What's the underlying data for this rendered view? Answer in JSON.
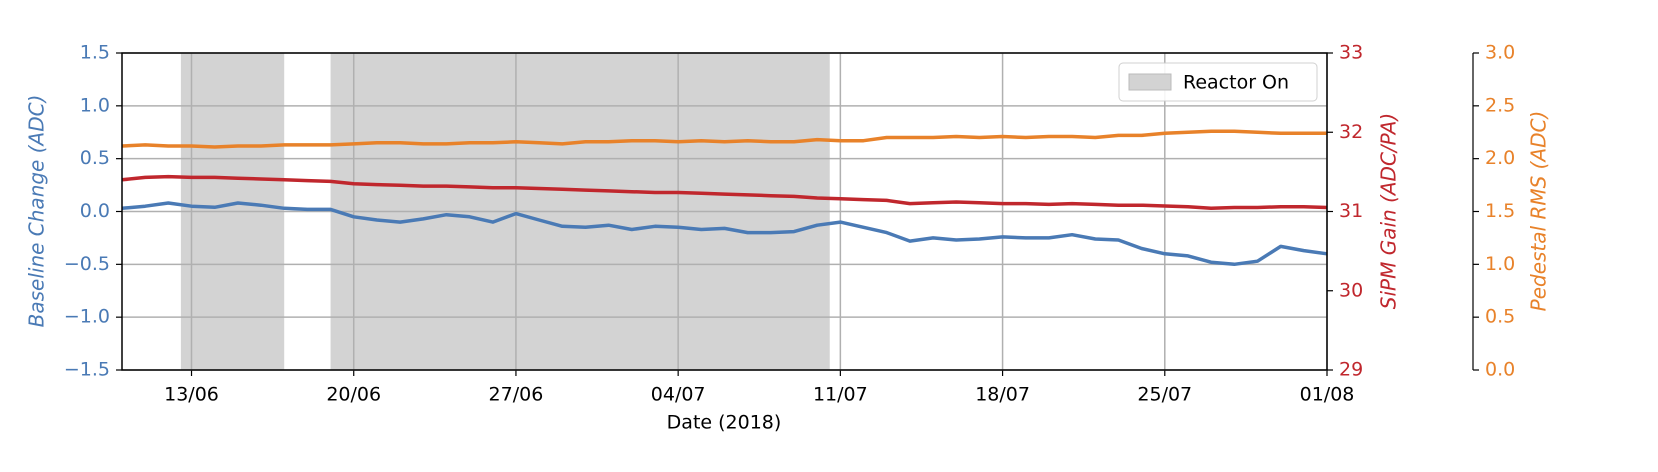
{
  "chart_data": {
    "type": "line",
    "xlabel": "Date (2018)",
    "ylabel": "Baseline Change (ADC)",
    "y2label": "SiPM Gain (ADC/PA)",
    "y3label": "Pedestal RMS (ADC)",
    "xlim": [
      "2018-06-10",
      "2018-08-01"
    ],
    "xticks": [
      {
        "value": "2018-06-13",
        "label": "13/06"
      },
      {
        "value": "2018-06-20",
        "label": "20/06"
      },
      {
        "value": "2018-06-27",
        "label": "27/06"
      },
      {
        "value": "2018-07-04",
        "label": "04/07"
      },
      {
        "value": "2018-07-11",
        "label": "11/07"
      },
      {
        "value": "2018-07-18",
        "label": "18/07"
      },
      {
        "value": "2018-07-25",
        "label": "25/07"
      },
      {
        "value": "2018-08-01",
        "label": "01/08"
      }
    ],
    "ylim": [
      -1.5,
      1.5
    ],
    "yticks": [
      {
        "value": -1.5,
        "label": "−1.5"
      },
      {
        "value": -1.0,
        "label": "−1.0"
      },
      {
        "value": -0.5,
        "label": "−0.5"
      },
      {
        "value": 0,
        "label": "0.0"
      },
      0.5,
      {
        "value": 1,
        "label": "1.0"
      },
      1.5
    ],
    "y2lim": [
      29,
      33
    ],
    "y2ticks": [
      29,
      30,
      31,
      32,
      33
    ],
    "y3lim": [
      0,
      3
    ],
    "y3ticks": [
      {
        "value": 0,
        "label": "0.0"
      },
      0.5,
      {
        "value": 1,
        "label": "1.0"
      },
      1.5,
      {
        "value": 2,
        "label": "2.0"
      },
      2.5,
      {
        "value": 3,
        "label": "3.0"
      }
    ],
    "grid": true,
    "legend": "upper right",
    "spans": {
      "label": "Reactor On",
      "color": "#d3d3d3",
      "ranges": [
        [
          "2018-06-12T13:00",
          "2018-06-17T00:00"
        ],
        [
          "2018-06-19T00:00",
          "2018-07-10T13:00"
        ]
      ]
    },
    "x": [
      "2018-06-10",
      "2018-06-11",
      "2018-06-12",
      "2018-06-13",
      "2018-06-14",
      "2018-06-15",
      "2018-06-16",
      "2018-06-17",
      "2018-06-18",
      "2018-06-19",
      "2018-06-20",
      "2018-06-21",
      "2018-06-22",
      "2018-06-23",
      "2018-06-24",
      "2018-06-25",
      "2018-06-26",
      "2018-06-27",
      "2018-06-28",
      "2018-06-29",
      "2018-06-30",
      "2018-07-01",
      "2018-07-02",
      "2018-07-03",
      "2018-07-04",
      "2018-07-05",
      "2018-07-06",
      "2018-07-07",
      "2018-07-08",
      "2018-07-09",
      "2018-07-10",
      "2018-07-11",
      "2018-07-12",
      "2018-07-13",
      "2018-07-14",
      "2018-07-15",
      "2018-07-16",
      "2018-07-17",
      "2018-07-18",
      "2018-07-19",
      "2018-07-20",
      "2018-07-21",
      "2018-07-22",
      "2018-07-23",
      "2018-07-24",
      "2018-07-25",
      "2018-07-26",
      "2018-07-27",
      "2018-07-28",
      "2018-07-29",
      "2018-07-30",
      "2018-07-31",
      "2018-08-01"
    ],
    "series": [
      {
        "axis": "y",
        "color": "#4a7ab5",
        "values": [
          0.03,
          0.05,
          0.08,
          0.05,
          0.04,
          0.08,
          0.06,
          0.03,
          0.02,
          0.02,
          -0.05,
          -0.08,
          -0.1,
          -0.07,
          -0.03,
          -0.05,
          -0.1,
          -0.02,
          -0.08,
          -0.14,
          -0.15,
          -0.13,
          -0.17,
          -0.14,
          -0.15,
          -0.17,
          -0.16,
          -0.2,
          -0.2,
          -0.19,
          -0.13,
          -0.1,
          -0.15,
          -0.2,
          -0.28,
          -0.25,
          -0.27,
          -0.26,
          -0.24,
          -0.25,
          -0.25,
          -0.22,
          -0.26,
          -0.27,
          -0.35,
          -0.4,
          -0.42,
          -0.48,
          -0.5,
          -0.47,
          -0.33,
          -0.37,
          -0.4
        ]
      },
      {
        "axis": "y2",
        "color": "#c0272d",
        "values": [
          31.4,
          31.43,
          31.44,
          31.43,
          31.43,
          31.42,
          31.41,
          31.4,
          31.39,
          31.38,
          31.35,
          31.34,
          31.33,
          31.32,
          31.32,
          31.31,
          31.3,
          31.3,
          31.29,
          31.28,
          31.27,
          31.26,
          31.25,
          31.24,
          31.24,
          31.23,
          31.22,
          31.21,
          31.2,
          31.19,
          31.17,
          31.16,
          31.15,
          31.14,
          31.1,
          31.11,
          31.12,
          31.11,
          31.1,
          31.1,
          31.09,
          31.1,
          31.09,
          31.08,
          31.08,
          31.07,
          31.06,
          31.04,
          31.05,
          31.05,
          31.06,
          31.06,
          31.05
        ]
      },
      {
        "axis": "y3",
        "color": "#e8822a",
        "values": [
          2.12,
          2.13,
          2.12,
          2.12,
          2.11,
          2.12,
          2.12,
          2.13,
          2.13,
          2.13,
          2.14,
          2.15,
          2.15,
          2.14,
          2.14,
          2.15,
          2.15,
          2.16,
          2.15,
          2.14,
          2.16,
          2.16,
          2.17,
          2.17,
          2.16,
          2.17,
          2.16,
          2.17,
          2.16,
          2.16,
          2.18,
          2.17,
          2.17,
          2.2,
          2.2,
          2.2,
          2.21,
          2.2,
          2.21,
          2.2,
          2.21,
          2.21,
          2.2,
          2.22,
          2.22,
          2.24,
          2.25,
          2.26,
          2.26,
          2.25,
          2.24,
          2.24,
          2.24
        ]
      }
    ]
  }
}
